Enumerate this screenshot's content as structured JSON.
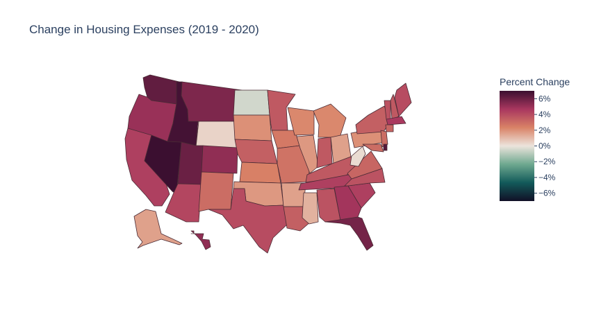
{
  "chart_data": {
    "type": "choropleth",
    "title": "Change in Housing Expenses (2019 - 2020)",
    "colorbar": {
      "title": "Percent Change",
      "range": [
        -7,
        7
      ],
      "ticks": [
        6,
        4,
        2,
        0,
        -2,
        -4,
        -6
      ],
      "tick_labels": [
        "6%",
        "4%",
        "2%",
        "0%",
        "−2%",
        "−4%",
        "−6%"
      ],
      "colorscale": [
        "#110f26",
        "#125a5a",
        "#6ea88f",
        "#ece4dc",
        "#d98266",
        "#a9375f",
        "#3b0f30"
      ]
    },
    "states": [
      {
        "code": "WA",
        "value": 6.2
      },
      {
        "code": "OR",
        "value": 5.0
      },
      {
        "code": "CA",
        "value": 4.4
      },
      {
        "code": "NV",
        "value": 7.0
      },
      {
        "code": "ID",
        "value": 6.8
      },
      {
        "code": "MT",
        "value": 5.6
      },
      {
        "code": "WY",
        "value": 0.4
      },
      {
        "code": "UT",
        "value": 6.0
      },
      {
        "code": "AZ",
        "value": 4.2
      },
      {
        "code": "CO",
        "value": 5.2
      },
      {
        "code": "NM",
        "value": 3.0
      },
      {
        "code": "ND",
        "value": -0.5
      },
      {
        "code": "SD",
        "value": 2.0
      },
      {
        "code": "NE",
        "value": 3.4
      },
      {
        "code": "KS",
        "value": 2.4
      },
      {
        "code": "OK",
        "value": 1.8
      },
      {
        "code": "TX",
        "value": 4.0
      },
      {
        "code": "MN",
        "value": 3.6
      },
      {
        "code": "IA",
        "value": 2.6
      },
      {
        "code": "MO",
        "value": 2.8
      },
      {
        "code": "AR",
        "value": 1.6
      },
      {
        "code": "LA",
        "value": 3.4
      },
      {
        "code": "WI",
        "value": 2.2
      },
      {
        "code": "IL",
        "value": 1.8
      },
      {
        "code": "MI",
        "value": 2.2
      },
      {
        "code": "IN",
        "value": 3.6
      },
      {
        "code": "OH",
        "value": 1.6
      },
      {
        "code": "KY",
        "value": 3.6
      },
      {
        "code": "TN",
        "value": 4.4
      },
      {
        "code": "MS",
        "value": 1.2
      },
      {
        "code": "AL",
        "value": 3.8
      },
      {
        "code": "GA",
        "value": 4.8
      },
      {
        "code": "FL",
        "value": 5.8
      },
      {
        "code": "SC",
        "value": 4.4
      },
      {
        "code": "NC",
        "value": 3.8
      },
      {
        "code": "VA",
        "value": 3.2
      },
      {
        "code": "WV",
        "value": 0.2
      },
      {
        "code": "PA",
        "value": 2.0
      },
      {
        "code": "NY",
        "value": 3.4
      },
      {
        "code": "VT",
        "value": 3.8
      },
      {
        "code": "NH",
        "value": 3.6
      },
      {
        "code": "ME",
        "value": 4.0
      },
      {
        "code": "MA",
        "value": 4.6
      },
      {
        "code": "CT",
        "value": 3.2
      },
      {
        "code": "NJ",
        "value": 3.0
      },
      {
        "code": "MD",
        "value": 3.0
      },
      {
        "code": "DE",
        "value": 6.5
      },
      {
        "code": "AK",
        "value": 1.6
      },
      {
        "code": "HI",
        "value": 5.2
      }
    ]
  }
}
